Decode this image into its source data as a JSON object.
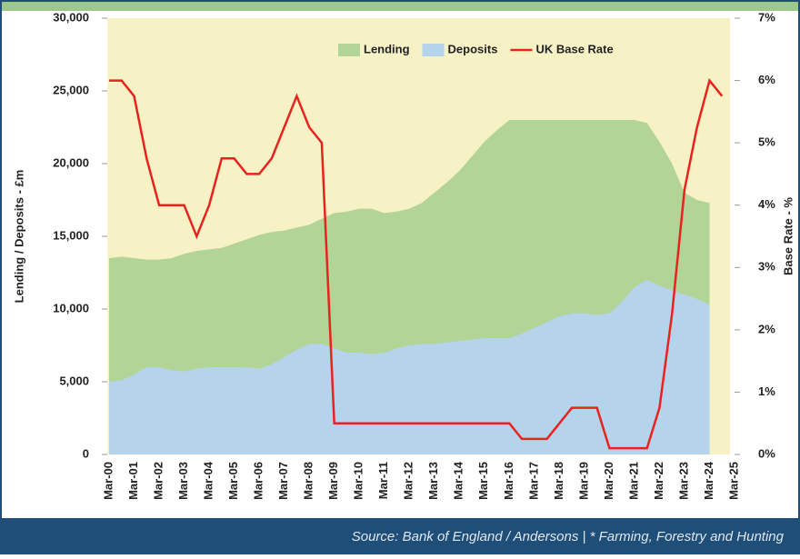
{
  "chart_data": {
    "type": "area-line",
    "y_label": "Lending / Deposits - £m",
    "y2_label": "Base Rate - %",
    "source": "Source:  Bank of England / Andersons  |  * Farming, Forestry and Hunting",
    "categories": [
      "Mar-00",
      null,
      "Mar-01",
      null,
      "Mar-02",
      null,
      "Mar-03",
      null,
      "Mar-04",
      null,
      "Mar-05",
      null,
      "Mar-06",
      null,
      "Mar-07",
      null,
      "Mar-08",
      null,
      "Mar-09",
      null,
      "Mar-10",
      null,
      "Mar-11",
      null,
      "Mar-12",
      null,
      "Mar-13",
      null,
      "Mar-14",
      null,
      "Mar-15",
      null,
      "Mar-16",
      null,
      "Mar-17",
      null,
      "Mar-18",
      null,
      "Mar-19",
      null,
      "Mar-20",
      null,
      "Mar-21",
      null,
      "Mar-22",
      null,
      "Mar-23",
      null,
      "Mar-24",
      null,
      "Mar-25"
    ],
    "series": [
      {
        "name": "Lending",
        "color": "#b3d497",
        "kind": "area",
        "values": [
          13500,
          13600,
          13500,
          13400,
          13400,
          13500,
          13800,
          14000,
          14100,
          14200,
          14500,
          14800,
          15100,
          15300,
          15400,
          15600,
          15800,
          16200,
          16600,
          16700,
          16900,
          16900,
          16600,
          16700,
          16900,
          17300,
          18000,
          18700,
          19500,
          20500,
          21500,
          22300,
          23000,
          23000,
          23000,
          23000,
          23000,
          23000,
          23000,
          23000,
          23000,
          23000,
          23000,
          22800,
          21500,
          20000,
          18000,
          17500,
          17300,
          null,
          null
        ]
      },
      {
        "name": "Deposits",
        "color": "#b5d3ea",
        "kind": "area",
        "values": [
          5000,
          5100,
          5500,
          6000,
          6000,
          5800,
          5700,
          5900,
          6000,
          6000,
          6000,
          6000,
          5900,
          6200,
          6700,
          7200,
          7600,
          7600,
          7300,
          7000,
          7000,
          6900,
          7000,
          7300,
          7500,
          7600,
          7600,
          7700,
          7800,
          7900,
          8000,
          8000,
          8000,
          8300,
          8700,
          9100,
          9500,
          9700,
          9700,
          9600,
          9700,
          10500,
          11500,
          12000,
          11600,
          11300,
          11000,
          10700,
          10300,
          null,
          null
        ]
      },
      {
        "name": "UK Base Rate",
        "color": "#e8231e",
        "kind": "line",
        "axis": "y2",
        "values": [
          6,
          6,
          5.75,
          4.75,
          4,
          4,
          4,
          3.5,
          4,
          4.75,
          4.75,
          4.5,
          4.5,
          4.75,
          5.25,
          5.75,
          5.25,
          5,
          0.5,
          0.5,
          0.5,
          0.5,
          0.5,
          0.5,
          0.5,
          0.5,
          0.5,
          0.5,
          0.5,
          0.5,
          0.5,
          0.5,
          0.5,
          0.25,
          0.25,
          0.25,
          0.5,
          0.75,
          0.75,
          0.75,
          0.1,
          0.1,
          0.1,
          0.1,
          0.75,
          2.25,
          4.25,
          5.25,
          6,
          5.75,
          null
        ]
      }
    ],
    "ylim": [
      0,
      30000
    ],
    "yticks": [
      0,
      {
        "value": 5000,
        "label": "5,000"
      },
      {
        "value": 10000,
        "label": "10,000"
      },
      {
        "value": 15000,
        "label": "15,000"
      },
      {
        "value": 20000,
        "label": "20,000"
      },
      {
        "value": 25000,
        "label": "25,000"
      },
      {
        "value": 30000,
        "label": "30,000"
      }
    ],
    "y2lim": [
      0,
      7
    ],
    "y2ticks": [
      {
        "value": 0,
        "label": "0%"
      },
      {
        "value": 1,
        "label": "1%"
      },
      {
        "value": 2,
        "label": "2%"
      },
      {
        "value": 3,
        "label": "3%"
      },
      {
        "value": 4,
        "label": "4%"
      },
      {
        "value": 5,
        "label": "5%"
      },
      {
        "value": 6,
        "label": "6%"
      },
      {
        "value": 7,
        "label": "7%"
      }
    ],
    "legend": "top"
  }
}
